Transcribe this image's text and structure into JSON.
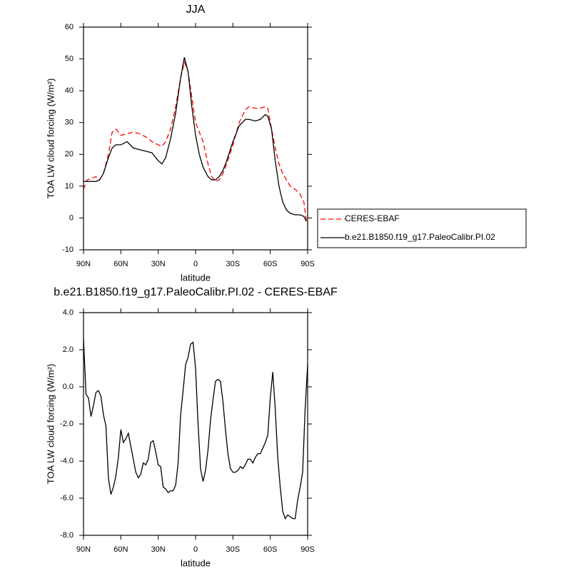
{
  "chart_data": [
    {
      "type": "line",
      "title": "JJA",
      "xlabel": "latitude",
      "ylabel": "TOA LW cloud forcing (W/m²)",
      "x": [
        90,
        87,
        83,
        80,
        77,
        74,
        70,
        67,
        64,
        60,
        55,
        50,
        45,
        40,
        35,
        30,
        27,
        24,
        20,
        16,
        12,
        9,
        6,
        3,
        0,
        -3,
        -6,
        -10,
        -13,
        -16,
        -19,
        -22,
        -25,
        -30,
        -35,
        -40,
        -43,
        -48,
        -52,
        -56,
        -58,
        -61,
        -64,
        -67,
        -70,
        -73,
        -76,
        -80,
        -84,
        -87,
        -89
      ],
      "series": [
        {
          "name": "CERES-EBAF",
          "color": "#ff0000",
          "line_style": "dashed",
          "values": [
            9,
            12,
            12.5,
            13,
            12,
            14,
            20,
            27,
            28,
            26,
            26.5,
            27,
            26.5,
            25.5,
            24,
            23,
            22.5,
            24,
            28,
            35,
            44,
            49,
            46,
            38,
            30,
            27,
            24,
            17,
            13,
            11.5,
            12,
            14,
            17,
            23,
            30,
            34,
            35,
            34.5,
            34.5,
            35,
            34.5,
            28,
            22,
            17,
            14,
            12,
            10,
            9,
            7.5,
            5,
            -1
          ]
        },
        {
          "name": "b.e21.B1850.f19_g17.PaleoCalibr.PI.02",
          "color": "#000000",
          "line_style": "solid",
          "values": [
            11.5,
            11.5,
            11.5,
            11.5,
            12,
            14,
            19,
            22,
            23,
            23,
            24,
            22,
            21.5,
            21,
            20.5,
            18,
            17,
            19,
            25,
            33,
            44,
            50.5,
            46,
            35,
            26,
            20,
            16,
            13,
            12,
            12,
            13,
            15,
            18,
            24,
            29,
            31,
            31,
            30.5,
            31,
            32.5,
            32,
            28,
            18,
            10,
            5,
            2.5,
            1.5,
            1,
            1,
            0.5,
            -1
          ]
        }
      ],
      "xlim": [
        90,
        -90
      ],
      "xticks": [
        {
          "value": 90,
          "label": "90N"
        },
        {
          "value": 60,
          "label": "60N"
        },
        {
          "value": 30,
          "label": "30N"
        },
        0,
        {
          "value": -30,
          "label": "30S"
        },
        {
          "value": -60,
          "label": "60S"
        },
        {
          "value": -90,
          "label": "90S"
        }
      ],
      "ylim": [
        -10,
        60
      ],
      "yticks": [
        -10,
        0,
        10,
        20,
        30,
        40,
        50,
        60
      ],
      "legend": "right",
      "grid": false
    },
    {
      "type": "line",
      "title": "b.e21.B1850.f19_g17.PaleoCalibr.PI.02 - CERES-EBAF",
      "xlabel": "latitude",
      "ylabel": "TOA LW cloud forcing (W/m²)",
      "x": [
        90,
        88,
        86,
        84,
        82,
        80,
        78,
        76,
        74,
        72,
        70,
        68,
        66,
        64,
        62,
        60,
        58,
        56,
        54,
        52,
        50,
        48,
        46,
        44,
        42,
        40,
        38,
        36,
        34,
        32,
        30,
        28,
        26,
        24,
        22,
        20,
        18,
        16,
        14,
        12,
        10,
        8,
        6,
        4,
        2,
        0,
        -2,
        -4,
        -6,
        -8,
        -10,
        -12,
        -14,
        -16,
        -18,
        -20,
        -22,
        -24,
        -26,
        -28,
        -30,
        -32,
        -34,
        -36,
        -38,
        -40,
        -42,
        -44,
        -46,
        -48,
        -50,
        -52,
        -54,
        -56,
        -58,
        -60,
        -62,
        -64,
        -66,
        -68,
        -70,
        -72,
        -74,
        -76,
        -78,
        -80,
        -82,
        -84,
        -86,
        -88,
        -90
      ],
      "color": "#000000",
      "values": [
        2.6,
        -0.4,
        -0.6,
        -1.6,
        -1.0,
        -0.3,
        -0.2,
        -0.5,
        -1.5,
        -2.1,
        -4.9,
        -5.8,
        -5.4,
        -4.8,
        -3.8,
        -2.3,
        -3.0,
        -2.8,
        -2.5,
        -3.2,
        -3.9,
        -4.6,
        -4.9,
        -4.7,
        -4.1,
        -4.2,
        -3.9,
        -3.0,
        -2.9,
        -3.5,
        -4.2,
        -4.3,
        -5.4,
        -5.5,
        -5.7,
        -5.6,
        -5.6,
        -5.3,
        -4.1,
        -1.5,
        -0.2,
        1.2,
        1.6,
        2.3,
        2.4,
        1.0,
        -2.0,
        -4.4,
        -5.1,
        -4.5,
        -3.4,
        -1.8,
        -0.7,
        0.3,
        0.4,
        0.3,
        -0.8,
        -2.3,
        -3.6,
        -4.4,
        -4.6,
        -4.6,
        -4.5,
        -4.3,
        -4.4,
        -4.2,
        -3.9,
        -3.9,
        -4.1,
        -3.8,
        -3.6,
        -3.6,
        -3.3,
        -3.0,
        -2.6,
        -0.6,
        0.8,
        -1.2,
        -3.8,
        -5.4,
        -6.7,
        -7.1,
        -6.9,
        -7.0,
        -7.1,
        -7.1,
        -6.1,
        -5.4,
        -4.6,
        -1.2,
        1.2
      ],
      "xlim": [
        90,
        -90
      ],
      "xticks": [
        {
          "value": 90,
          "label": "90N"
        },
        {
          "value": 60,
          "label": "60N"
        },
        {
          "value": 30,
          "label": "30N"
        },
        0,
        {
          "value": -30,
          "label": "30S"
        },
        {
          "value": -60,
          "label": "60S"
        },
        {
          "value": -90,
          "label": "90S"
        }
      ],
      "ylim": [
        -8,
        4
      ],
      "yticks": [
        {
          "value": -8,
          "label": "-8.0"
        },
        {
          "value": -6,
          "label": "-6.0"
        },
        {
          "value": -4,
          "label": "-4.0"
        },
        {
          "value": -2,
          "label": "-2.0"
        },
        {
          "value": 0,
          "label": "0.0"
        },
        {
          "value": 2,
          "label": "2.0"
        },
        {
          "value": 4,
          "label": "4.0"
        }
      ],
      "grid": false
    }
  ]
}
